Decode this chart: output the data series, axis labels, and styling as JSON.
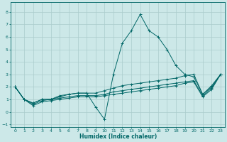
{
  "xlabel": "Humidex (Indice chaleur)",
  "bg_color": "#cce8e8",
  "grid_color": "#aacccc",
  "line_color": "#006666",
  "xlim": [
    -0.5,
    23.5
  ],
  "ylim": [
    -1.2,
    8.8
  ],
  "xticks": [
    0,
    1,
    2,
    3,
    4,
    5,
    6,
    7,
    8,
    9,
    10,
    11,
    12,
    13,
    14,
    15,
    16,
    17,
    18,
    19,
    20,
    21,
    22,
    23
  ],
  "yticks": [
    -1,
    0,
    1,
    2,
    3,
    4,
    5,
    6,
    7,
    8
  ],
  "lines": [
    {
      "x": [
        0,
        1,
        2,
        3,
        4,
        5,
        6,
        7,
        8,
        9,
        10,
        11,
        12,
        13,
        14,
        15,
        16,
        17,
        18,
        19,
        20,
        21,
        22,
        23
      ],
      "y": [
        2.0,
        1.0,
        0.7,
        1.0,
        1.0,
        1.3,
        1.4,
        1.5,
        1.5,
        0.4,
        -0.6,
        3.0,
        5.5,
        6.5,
        7.8,
        6.5,
        6.0,
        5.0,
        3.7,
        3.0,
        2.8,
        1.4,
        2.0,
        3.0
      ]
    },
    {
      "x": [
        0,
        1,
        2,
        3,
        4,
        5,
        6,
        7,
        8,
        9,
        10,
        11,
        12,
        13,
        14,
        15,
        16,
        17,
        18,
        19,
        20,
        21,
        22,
        23
      ],
      "y": [
        2.0,
        1.0,
        0.7,
        1.0,
        1.0,
        1.2,
        1.4,
        1.5,
        1.5,
        1.5,
        1.7,
        1.9,
        2.1,
        2.2,
        2.3,
        2.4,
        2.5,
        2.6,
        2.7,
        2.9,
        3.0,
        1.4,
        2.1,
        3.0
      ]
    },
    {
      "x": [
        0,
        1,
        2,
        3,
        4,
        5,
        6,
        7,
        8,
        9,
        10,
        11,
        12,
        13,
        14,
        15,
        16,
        17,
        18,
        19,
        20,
        21,
        22,
        23
      ],
      "y": [
        2.0,
        1.0,
        0.6,
        0.9,
        1.0,
        1.1,
        1.2,
        1.3,
        1.3,
        1.3,
        1.4,
        1.6,
        1.7,
        1.8,
        1.9,
        2.0,
        2.1,
        2.2,
        2.3,
        2.4,
        2.5,
        1.3,
        1.9,
        3.0
      ]
    },
    {
      "x": [
        0,
        1,
        2,
        3,
        4,
        5,
        6,
        7,
        8,
        9,
        10,
        11,
        12,
        13,
        14,
        15,
        16,
        17,
        18,
        19,
        20,
        21,
        22,
        23
      ],
      "y": [
        2.0,
        1.0,
        0.5,
        0.8,
        0.9,
        1.0,
        1.1,
        1.2,
        1.2,
        1.2,
        1.3,
        1.4,
        1.5,
        1.6,
        1.7,
        1.8,
        1.9,
        2.0,
        2.1,
        2.3,
        2.4,
        1.2,
        1.8,
        3.0
      ]
    }
  ]
}
